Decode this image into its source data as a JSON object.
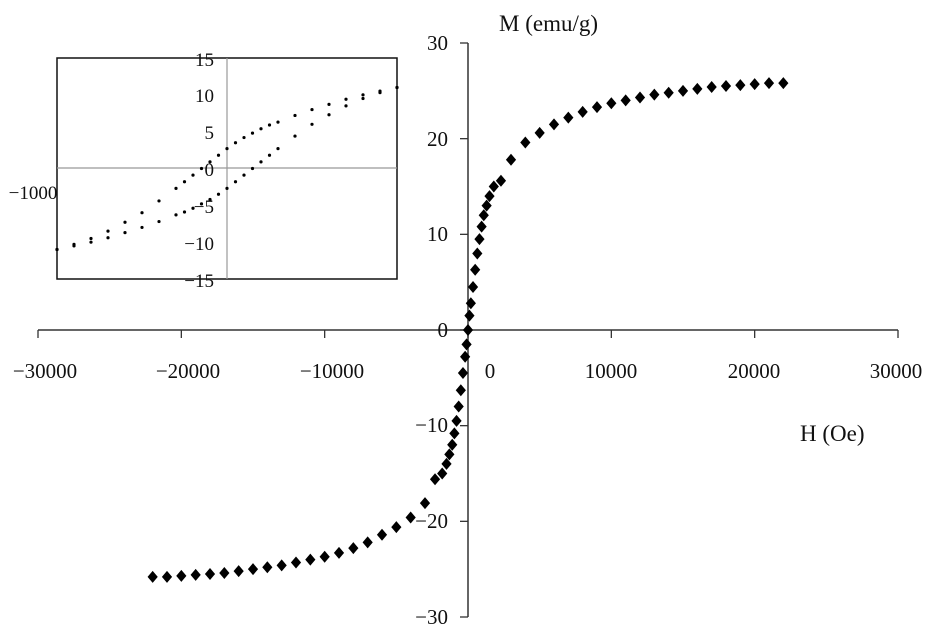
{
  "chart_data": [
    {
      "type": "scatter",
      "title": "",
      "xlabel": "H (Oe)",
      "ylabel": "M (emu/g)",
      "xlim": [
        -30000,
        30000
      ],
      "ylim": [
        -30,
        30
      ],
      "xticks": [
        "−30000",
        "−20000",
        "−10000",
        "0",
        "10000",
        "20000",
        "30000"
      ],
      "yticks": [
        "30",
        "20",
        "10",
        "0",
        "−10",
        "−20",
        "−30"
      ],
      "series": [
        {
          "marker": "diamond",
          "color": "#000000",
          "x": [
            -22000,
            -21000,
            -20000,
            -19000,
            -18000,
            -17000,
            -16000,
            -15000,
            -14000,
            -13000,
            -12000,
            -11000,
            -10000,
            -9000,
            -8000,
            -7000,
            -6000,
            -5000,
            -4000,
            -3000,
            -2300,
            -1800,
            -1500,
            -1300,
            -1100,
            -950,
            -800,
            -650,
            -500,
            -350,
            -200,
            -100,
            0,
            100,
            200,
            350,
            500,
            650,
            800,
            950,
            1100,
            1300,
            1500,
            1800,
            2300,
            3000,
            4000,
            5000,
            6000,
            7000,
            8000,
            9000,
            10000,
            11000,
            12000,
            13000,
            14000,
            15000,
            16000,
            17000,
            18000,
            19000,
            20000,
            21000,
            22000
          ],
          "y": [
            -25.8,
            -25.8,
            -25.7,
            -25.6,
            -25.5,
            -25.4,
            -25.2,
            -25.0,
            -24.8,
            -24.6,
            -24.3,
            -24.0,
            -23.7,
            -23.3,
            -22.8,
            -22.2,
            -21.4,
            -20.6,
            -19.6,
            -18.1,
            -15.6,
            -15.0,
            -14.0,
            -13.0,
            -12.0,
            -10.8,
            -9.5,
            -8.0,
            -6.3,
            -4.5,
            -2.8,
            -1.5,
            0,
            1.5,
            2.8,
            4.5,
            6.3,
            8.0,
            9.5,
            10.8,
            12.0,
            13.0,
            14.0,
            15.0,
            15.6,
            17.8,
            19.6,
            20.6,
            21.5,
            22.2,
            22.8,
            23.3,
            23.7,
            24.0,
            24.3,
            24.6,
            24.8,
            25.0,
            25.2,
            25.4,
            25.5,
            25.6,
            25.7,
            25.8,
            25.8
          ]
        }
      ]
    },
    {
      "type": "scatter",
      "title": "",
      "xlim": [
        -1000,
        1000
      ],
      "ylim": [
        -15,
        15
      ],
      "xticks": [
        "−1000"
      ],
      "yticks": [
        "15",
        "10",
        "5",
        "0",
        "−5",
        "−10",
        "−15"
      ],
      "series": [
        {
          "marker": "dot",
          "color": "#000000",
          "x": [
            -1000,
            -900,
            -800,
            -700,
            -600,
            -500,
            -400,
            -300,
            -250,
            -200,
            -150,
            -100,
            -50,
            0,
            50,
            100,
            150,
            200,
            250,
            300,
            400,
            500,
            600,
            700,
            800,
            900,
            1000
          ],
          "y": [
            -11.0,
            -10.3,
            -9.5,
            -8.5,
            -7.3,
            -6.0,
            -4.4,
            -2.7,
            -1.8,
            -0.9,
            0.0,
            0.9,
            1.8,
            2.7,
            3.5,
            4.2,
            4.8,
            5.4,
            5.9,
            6.3,
            7.2,
            8.0,
            8.7,
            9.4,
            10.0,
            10.5,
            11.0
          ]
        },
        {
          "marker": "dot",
          "color": "#000000",
          "x": [
            -1000,
            -900,
            -800,
            -700,
            -600,
            -500,
            -400,
            -300,
            -250,
            -200,
            -150,
            -100,
            -50,
            0,
            50,
            100,
            150,
            200,
            250,
            300,
            400,
            500,
            600,
            700,
            800,
            900,
            1000
          ],
          "y": [
            -11.0,
            -10.5,
            -10.0,
            -9.4,
            -8.7,
            -8.0,
            -7.2,
            -6.3,
            -5.9,
            -5.4,
            -4.8,
            -4.2,
            -3.5,
            -2.7,
            -1.8,
            -0.9,
            0.0,
            0.9,
            1.8,
            2.7,
            4.4,
            6.0,
            7.3,
            8.5,
            9.5,
            10.3,
            11.0
          ]
        }
      ]
    }
  ]
}
